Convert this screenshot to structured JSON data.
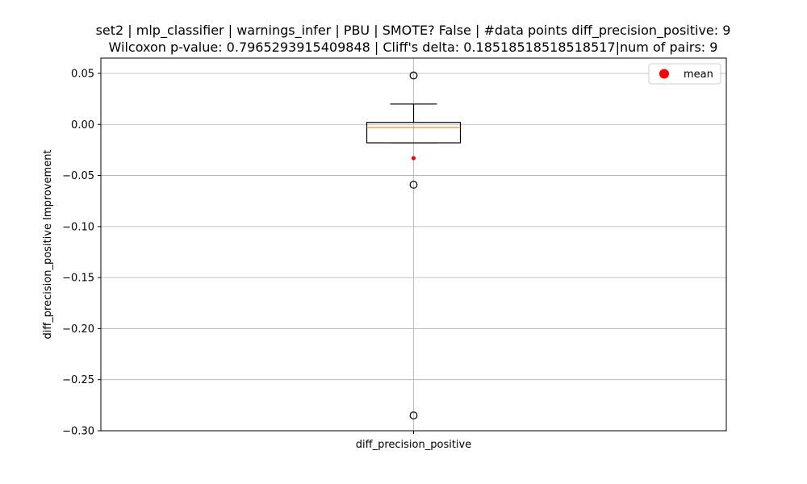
{
  "chart_data": {
    "type": "box",
    "title_line1": "set2 | mlp_classifier | warnings_infer | PBU | SMOTE? False | #data points diff_precision_positive: 9",
    "title_line2": "Wilcoxon p-value: 0.7965293915409848 | Cliff's delta: 0.18518518518518517|num of pairs: 9",
    "xlabel": "",
    "ylabel": "diff_precision_positive Improvement",
    "categories": [
      "diff_precision_positive"
    ],
    "ylim": [
      -0.3,
      0.065
    ],
    "yticks": [
      0.05,
      0.0,
      -0.05,
      -0.1,
      -0.15,
      -0.2,
      -0.25,
      -0.3
    ],
    "ytick_labels": [
      "0.05",
      "0.00",
      "−0.05",
      "−0.10",
      "−0.15",
      "−0.20",
      "−0.25",
      "−0.30"
    ],
    "grid": true,
    "legend": {
      "position": "top-right",
      "entries": [
        {
          "label": "mean",
          "color": "#ff0000",
          "marker": "circle"
        }
      ]
    },
    "box": {
      "q1": -0.018,
      "median": -0.003,
      "q3": 0.002,
      "whisker_low": -0.018,
      "whisker_high": 0.02,
      "outliers": [
        0.048,
        -0.059,
        -0.285
      ],
      "mean": -0.033
    },
    "colors": {
      "median": "#ff7f0e",
      "mean": "#ff0000",
      "box": "#000000",
      "grid": "#b0b0b0"
    }
  }
}
